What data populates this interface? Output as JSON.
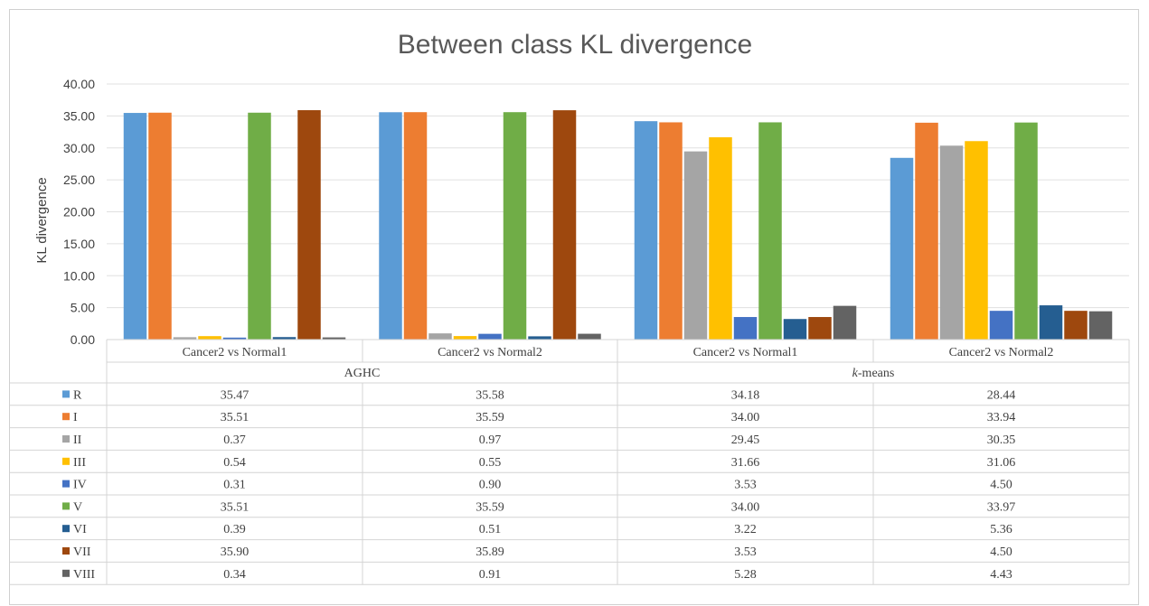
{
  "chart_data": {
    "type": "bar",
    "title": "Between class KL divergence",
    "ylabel": "KL divergence",
    "xlabel": "",
    "ylim": [
      0,
      40
    ],
    "yticks": [
      "0.00",
      "5.00",
      "10.00",
      "15.00",
      "20.00",
      "25.00",
      "30.00",
      "35.00",
      "40.00"
    ],
    "grid": true,
    "legend": "data-table",
    "categories": [
      "Cancer2 vs Normal1",
      "Cancer2 vs Normal2",
      "Cancer2 vs Normal1",
      "Cancer2 vs Normal2"
    ],
    "groups": [
      {
        "label_prefix": "",
        "label_italic": "",
        "label_rest": "AGHC",
        "span": 2
      },
      {
        "label_prefix": "",
        "label_italic": "k",
        "label_rest": "-means",
        "span": 2
      }
    ],
    "series": [
      {
        "name": "R",
        "color": "#5b9bd5",
        "values": [
          35.47,
          35.58,
          34.18,
          28.44
        ],
        "labels": [
          "35.47",
          "35.58",
          "34.18",
          "28.44"
        ]
      },
      {
        "name": "I",
        "color": "#ed7d31",
        "values": [
          35.51,
          35.59,
          34.0,
          33.94
        ],
        "labels": [
          "35.51",
          "35.59",
          "34.00",
          "33.94"
        ]
      },
      {
        "name": "II",
        "color": "#a5a5a5",
        "values": [
          0.37,
          0.97,
          29.45,
          30.35
        ],
        "labels": [
          "0.37",
          "0.97",
          "29.45",
          "30.35"
        ]
      },
      {
        "name": "III",
        "color": "#ffc000",
        "values": [
          0.54,
          0.55,
          31.66,
          31.06
        ],
        "labels": [
          "0.54",
          "0.55",
          "31.66",
          "31.06"
        ]
      },
      {
        "name": "IV",
        "color": "#4472c4",
        "values": [
          0.31,
          0.9,
          3.53,
          4.5
        ],
        "labels": [
          "0.31",
          "0.90",
          "3.53",
          "4.50"
        ]
      },
      {
        "name": "V",
        "color": "#70ad47",
        "values": [
          35.51,
          35.59,
          34.0,
          33.97
        ],
        "labels": [
          "35.51",
          "35.59",
          "34.00",
          "33.97"
        ]
      },
      {
        "name": "VI",
        "color": "#255e91",
        "values": [
          0.39,
          0.51,
          3.22,
          5.36
        ],
        "labels": [
          "0.39",
          "0.51",
          "3.22",
          "5.36"
        ]
      },
      {
        "name": "VII",
        "color": "#9e480e",
        "values": [
          35.9,
          35.89,
          3.53,
          4.5
        ],
        "labels": [
          "35.90",
          "35.89",
          "3.53",
          "4.50"
        ]
      },
      {
        "name": "VIII",
        "color": "#636363",
        "values": [
          0.34,
          0.91,
          5.28,
          4.43
        ],
        "labels": [
          "0.34",
          "0.91",
          "5.28",
          "4.43"
        ]
      }
    ]
  }
}
